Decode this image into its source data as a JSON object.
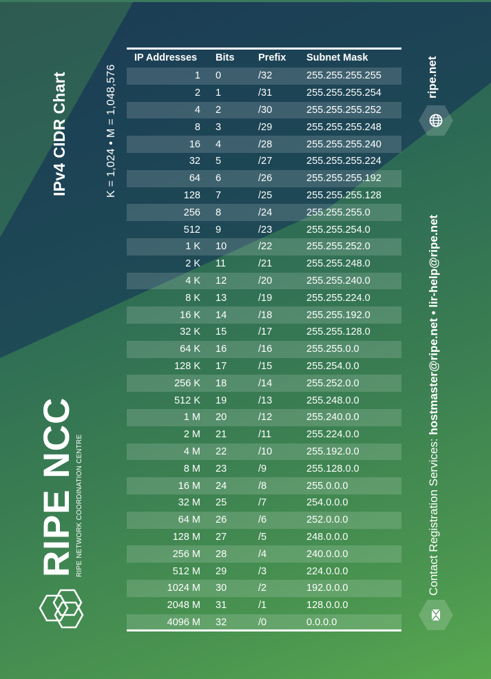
{
  "title": "IPv4 CIDR Chart",
  "units_note": "K = 1,024 • M = 1,048,576",
  "website": "ripe.net",
  "contact": {
    "label": "Contact Registration Services: ",
    "emails": "hostmaster@ripe.net • lir-help@ripe.net"
  },
  "brand": {
    "name": "RIPE NCC",
    "subtitle": "RIPE NETWORK COORDINATION CENTRE"
  },
  "icons": {
    "web": "globe-icon",
    "mail": "mail-icon",
    "logo": "hexagon-cubes-logo"
  },
  "colors": {
    "bg_dark": "#1b3b55",
    "bg_mid": "#2d6a55",
    "bg_light": "#58a84f",
    "text": "#ffffff"
  },
  "table": {
    "headers": [
      "IP Addresses",
      "Bits",
      "Prefix",
      "Subnet Mask"
    ],
    "rows": [
      [
        "1",
        "0",
        "/32",
        "255.255.255.255"
      ],
      [
        "2",
        "1",
        "/31",
        "255.255.255.254"
      ],
      [
        "4",
        "2",
        "/30",
        "255.255.255.252"
      ],
      [
        "8",
        "3",
        "/29",
        "255.255.255.248"
      ],
      [
        "16",
        "4",
        "/28",
        "255.255.255.240"
      ],
      [
        "32",
        "5",
        "/27",
        "255.255.255.224"
      ],
      [
        "64",
        "6",
        "/26",
        "255.255.255.192"
      ],
      [
        "128",
        "7",
        "/25",
        "255.255.255.128"
      ],
      [
        "256",
        "8",
        "/24",
        "255.255.255.0"
      ],
      [
        "512",
        "9",
        "/23",
        "255.255.254.0"
      ],
      [
        "1 K",
        "10",
        "/22",
        "255.255.252.0"
      ],
      [
        "2 K",
        "11",
        "/21",
        "255.255.248.0"
      ],
      [
        "4 K",
        "12",
        "/20",
        "255.255.240.0"
      ],
      [
        "8 K",
        "13",
        "/19",
        "255.255.224.0"
      ],
      [
        "16 K",
        "14",
        "/18",
        "255.255.192.0"
      ],
      [
        "32 K",
        "15",
        "/17",
        "255.255.128.0"
      ],
      [
        "64 K",
        "16",
        "/16",
        "255.255.0.0"
      ],
      [
        "128 K",
        "17",
        "/15",
        "255.254.0.0"
      ],
      [
        "256 K",
        "18",
        "/14",
        "255.252.0.0"
      ],
      [
        "512 K",
        "19",
        "/13",
        "255.248.0.0"
      ],
      [
        "1 M",
        "20",
        "/12",
        "255.240.0.0"
      ],
      [
        "2 M",
        "21",
        "/11",
        "255.224.0.0"
      ],
      [
        "4 M",
        "22",
        "/10",
        "255.192.0.0"
      ],
      [
        "8 M",
        "23",
        "/9",
        "255.128.0.0"
      ],
      [
        "16 M",
        "24",
        "/8",
        "255.0.0.0"
      ],
      [
        "32 M",
        "25",
        "/7",
        "254.0.0.0"
      ],
      [
        "64 M",
        "26",
        "/6",
        "252.0.0.0"
      ],
      [
        "128 M",
        "27",
        "/5",
        "248.0.0.0"
      ],
      [
        "256 M",
        "28",
        "/4",
        "240.0.0.0"
      ],
      [
        "512 M",
        "29",
        "/3",
        "224.0.0.0"
      ],
      [
        "1024 M",
        "30",
        "/2",
        "192.0.0.0"
      ],
      [
        "2048 M",
        "31",
        "/1",
        "128.0.0.0"
      ],
      [
        "4096 M",
        "32",
        "/0",
        "0.0.0.0"
      ]
    ]
  }
}
